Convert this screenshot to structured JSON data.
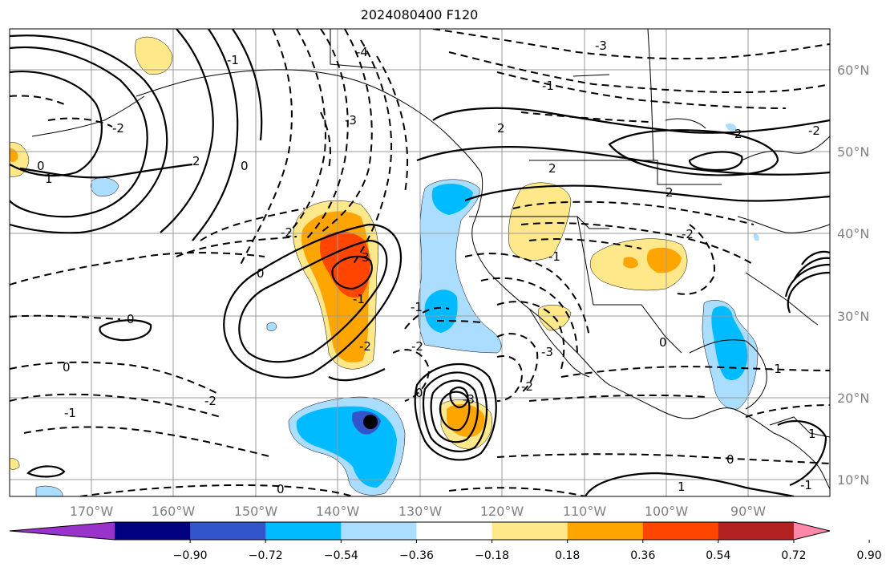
{
  "title": "2024080400 F120",
  "map": {
    "lon_labels": [
      "170°W",
      "160°W",
      "150°W",
      "140°W",
      "130°W",
      "120°W",
      "110°W",
      "100°W",
      "90°W"
    ],
    "lat_labels": [
      "60°N",
      "50°N",
      "40°N",
      "30°N",
      "20°N",
      "10°N"
    ],
    "contour_labels": [
      "-4",
      "-3",
      "-3",
      "-1",
      "-2",
      "2",
      "2",
      "2",
      "0",
      "0",
      "1",
      "2",
      "-2",
      "-2",
      "3",
      "-1",
      "0",
      "-1",
      "0",
      "-1",
      "0",
      "-2",
      "-2",
      "0",
      "-1",
      "-3",
      "-2",
      "-3",
      "-1",
      "1",
      "-2",
      "0",
      "-2",
      "0",
      "2",
      "-1",
      "0",
      "-1",
      "1"
    ],
    "storm_marker": "black-dot-icon"
  },
  "colorbar": {
    "colors": [
      "#9933cc",
      "#000080",
      "#3355cc",
      "#00bbff",
      "#aaddff",
      "#ffffff",
      "#ffe88a",
      "#ffa500",
      "#ff4500",
      "#b22222",
      "#ff88aa"
    ],
    "tick_labels": [
      "−0.90",
      "−0.72",
      "−0.54",
      "−0.36",
      "−0.18",
      "0.18",
      "0.36",
      "0.54",
      "0.72",
      "0.90"
    ]
  }
}
